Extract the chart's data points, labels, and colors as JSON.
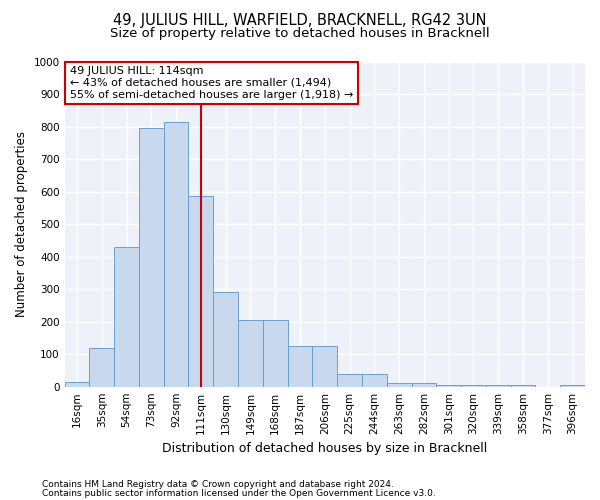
{
  "title": "49, JULIUS HILL, WARFIELD, BRACKNELL, RG42 3UN",
  "subtitle": "Size of property relative to detached houses in Bracknell",
  "xlabel": "Distribution of detached houses by size in Bracknell",
  "ylabel": "Number of detached properties",
  "bar_color": "#c8d9ed",
  "bar_edge_color": "#6a9fd0",
  "background_color": "#eef2f8",
  "grid_color": "#ffffff",
  "categories": [
    "16sqm",
    "35sqm",
    "54sqm",
    "73sqm",
    "92sqm",
    "111sqm",
    "130sqm",
    "149sqm",
    "168sqm",
    "187sqm",
    "206sqm",
    "225sqm",
    "244sqm",
    "263sqm",
    "282sqm",
    "301sqm",
    "320sqm",
    "339sqm",
    "358sqm",
    "377sqm",
    "396sqm"
  ],
  "values": [
    15,
    120,
    430,
    795,
    815,
    585,
    290,
    205,
    205,
    125,
    125,
    38,
    38,
    12,
    12,
    5,
    5,
    5,
    5,
    0,
    5
  ],
  "ylim": [
    0,
    1000
  ],
  "yticks": [
    0,
    100,
    200,
    300,
    400,
    500,
    600,
    700,
    800,
    900,
    1000
  ],
  "vline_x": 5.0,
  "vline_color": "#cc0000",
  "annotation_line1": "49 JULIUS HILL: 114sqm",
  "annotation_line2": "← 43% of detached houses are smaller (1,494)",
  "annotation_line3": "55% of semi-detached houses are larger (1,918) →",
  "annotation_box_color": "#ffffff",
  "annotation_box_edge": "#cc0000",
  "footer1": "Contains HM Land Registry data © Crown copyright and database right 2024.",
  "footer2": "Contains public sector information licensed under the Open Government Licence v3.0.",
  "title_fontsize": 10.5,
  "subtitle_fontsize": 9.5,
  "tick_fontsize": 7.5,
  "ylabel_fontsize": 8.5,
  "xlabel_fontsize": 9,
  "annotation_fontsize": 8,
  "footer_fontsize": 6.5
}
